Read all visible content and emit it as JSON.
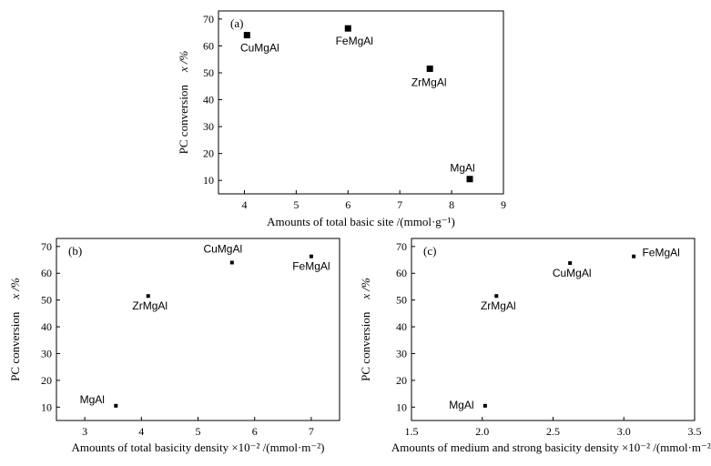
{
  "chart_data": [
    {
      "type": "scatter",
      "panel_label": "(a)",
      "xlabel": "Amounts of total basic site /(mmol·g⁻¹)",
      "ylabel_main": "PC conversion",
      "ylabel_sym": "x /%",
      "xlim": [
        3.5,
        9
      ],
      "ylim": [
        5,
        73
      ],
      "xticks": [
        4,
        5,
        6,
        7,
        8,
        9
      ],
      "yticks": [
        10,
        20,
        30,
        40,
        50,
        60,
        70
      ],
      "points": [
        {
          "label": "CuMgAl",
          "x": 4.05,
          "y": 64
        },
        {
          "label": "FeMgAl",
          "x": 6.0,
          "y": 66.5
        },
        {
          "label": "ZrMgAl",
          "x": 7.58,
          "y": 51.5
        },
        {
          "label": "MgAl",
          "x": 8.35,
          "y": 10.5
        }
      ]
    },
    {
      "type": "scatter",
      "panel_label": "(b)",
      "xlabel": "Amounts of total basicity density ×10⁻² /(mmol·m⁻²)",
      "ylabel_main": "PC conversion",
      "ylabel_sym": "x /%",
      "xlim": [
        2.5,
        7.5
      ],
      "ylim": [
        5,
        73
      ],
      "xticks": [
        3,
        4,
        5,
        6,
        7
      ],
      "yticks": [
        10,
        20,
        30,
        40,
        50,
        60,
        70
      ],
      "points": [
        {
          "label": "MgAl",
          "x": 3.55,
          "y": 10.5
        },
        {
          "label": "ZrMgAl",
          "x": 4.12,
          "y": 51.5
        },
        {
          "label": "CuMgAl",
          "x": 5.6,
          "y": 64
        },
        {
          "label": "FeMgAl",
          "x": 7.0,
          "y": 66.3
        }
      ]
    },
    {
      "type": "scatter",
      "panel_label": "(c)",
      "xlabel": "Amounts of medium and strong basicity density ×10⁻² /(mmol·m⁻²)",
      "ylabel_main": "PC conversion",
      "ylabel_sym": "x /%",
      "xlim": [
        1.5,
        3.5
      ],
      "ylim": [
        5,
        73
      ],
      "xticks": [
        1.5,
        2.0,
        2.5,
        3.0,
        3.5
      ],
      "yticks": [
        10,
        20,
        30,
        40,
        50,
        60,
        70
      ],
      "points": [
        {
          "label": "MgAl",
          "x": 2.02,
          "y": 10.5
        },
        {
          "label": "ZrMgAl",
          "x": 2.1,
          "y": 51.5
        },
        {
          "label": "CuMgAl",
          "x": 2.62,
          "y": 63.8
        },
        {
          "label": "FeMgAl",
          "x": 3.07,
          "y": 66.3
        }
      ]
    }
  ]
}
